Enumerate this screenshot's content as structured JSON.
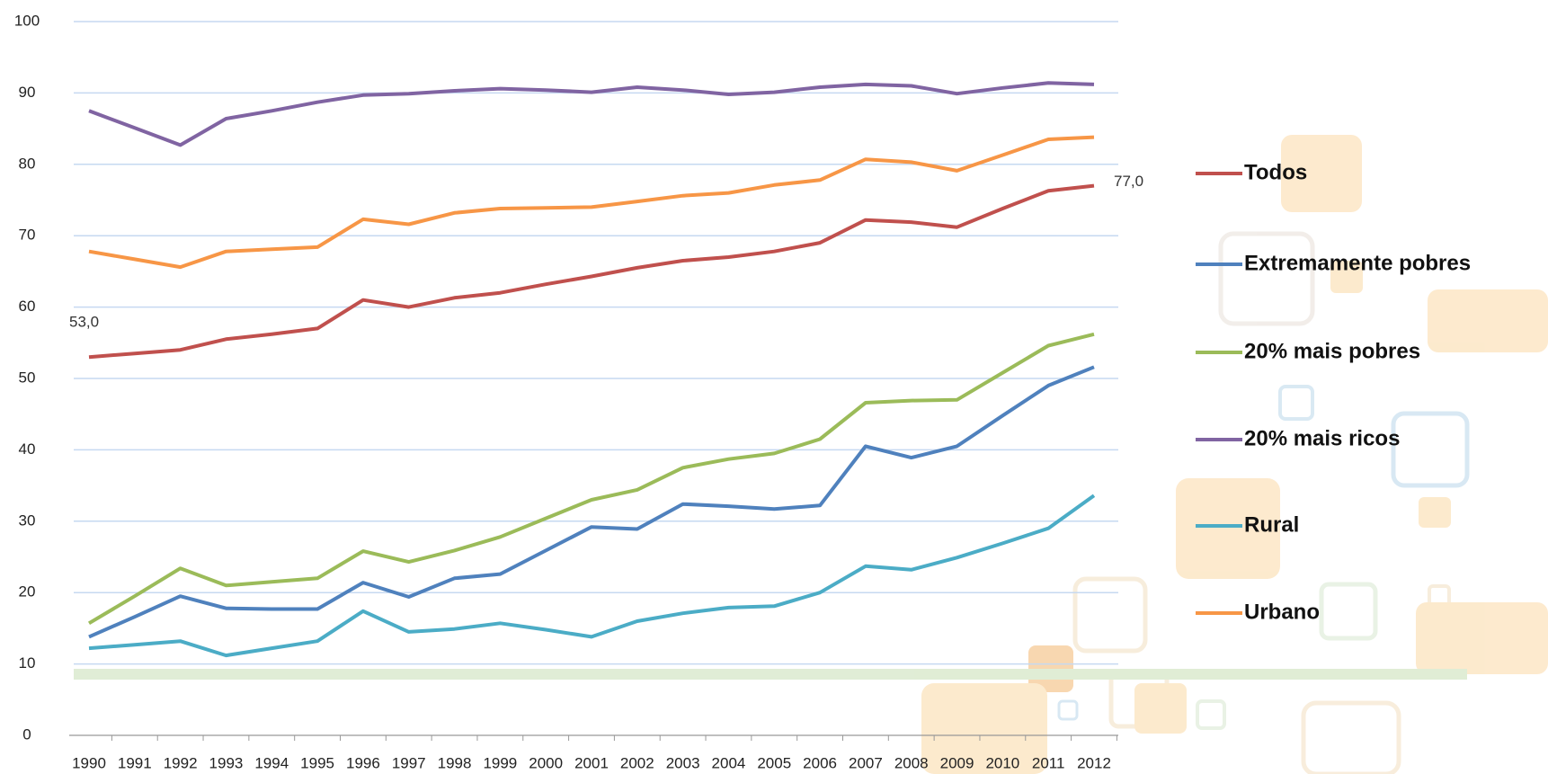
{
  "chart_data": {
    "type": "line",
    "categories": [
      "1990",
      "1991",
      "1992",
      "1993",
      "1994",
      "1995",
      "1996",
      "1997",
      "1998",
      "1999",
      "2000",
      "2001",
      "2002",
      "2003",
      "2004",
      "2005",
      "2006",
      "2007",
      "2008",
      "2009",
      "2010",
      "2011",
      "2012"
    ],
    "ylim": [
      0,
      100
    ],
    "yticks": [
      0,
      10,
      20,
      30,
      40,
      50,
      60,
      70,
      80,
      90,
      100
    ],
    "grid": true,
    "legend": "right",
    "series": [
      {
        "name": "Todos",
        "color": "#c0504d",
        "values": [
          53.0,
          53.5,
          54.0,
          55.5,
          56.2,
          57.0,
          61.0,
          60.0,
          61.3,
          62.0,
          63.2,
          64.3,
          65.5,
          66.5,
          67.0,
          67.8,
          69.0,
          72.2,
          71.9,
          71.2,
          73.8,
          76.3,
          77.0
        ],
        "value_labels": [
          "53,0",
          null,
          null,
          null,
          null,
          null,
          null,
          null,
          null,
          null,
          null,
          null,
          null,
          null,
          null,
          null,
          null,
          null,
          null,
          null,
          null,
          null,
          "77,0"
        ]
      },
      {
        "name": "Extremamente pobres",
        "color": "#4f81bd",
        "values": [
          13.8,
          16.6,
          19.5,
          17.8,
          17.7,
          17.7,
          21.4,
          19.4,
          22.0,
          22.6,
          25.9,
          29.2,
          28.9,
          32.4,
          32.1,
          31.7,
          32.2,
          40.5,
          38.9,
          40.5,
          44.8,
          49.0,
          51.6
        ]
      },
      {
        "name": "20% mais pobres",
        "color": "#9bbb59",
        "values": [
          15.7,
          19.5,
          23.4,
          21.0,
          21.5,
          22.0,
          25.8,
          24.3,
          25.9,
          27.8,
          30.4,
          33.0,
          34.4,
          37.5,
          38.7,
          39.5,
          41.5,
          46.6,
          46.9,
          47.0,
          50.8,
          54.6,
          56.2
        ]
      },
      {
        "name": "20% mais ricos",
        "color": "#8064a2",
        "values": [
          87.5,
          85.1,
          82.7,
          86.4,
          87.5,
          88.7,
          89.7,
          89.9,
          90.3,
          90.6,
          90.4,
          90.1,
          90.8,
          90.4,
          89.8,
          90.1,
          90.8,
          91.2,
          91.0,
          89.9,
          90.7,
          91.4,
          91.2
        ]
      },
      {
        "name": "Rural",
        "color": "#4bacc6",
        "values": [
          12.2,
          12.7,
          13.2,
          11.2,
          12.2,
          13.2,
          17.4,
          14.5,
          14.9,
          15.7,
          14.8,
          13.8,
          16.0,
          17.1,
          17.9,
          18.1,
          20.0,
          23.7,
          23.2,
          24.9,
          26.9,
          29.0,
          33.6
        ]
      },
      {
        "name": "Urbano",
        "color": "#f79646",
        "values": [
          67.8,
          66.7,
          65.6,
          67.8,
          68.1,
          68.4,
          72.3,
          71.6,
          73.2,
          73.8,
          73.9,
          74.0,
          74.8,
          75.6,
          76.0,
          77.1,
          77.8,
          80.7,
          80.3,
          79.1,
          81.3,
          83.5,
          83.8
        ]
      }
    ]
  }
}
